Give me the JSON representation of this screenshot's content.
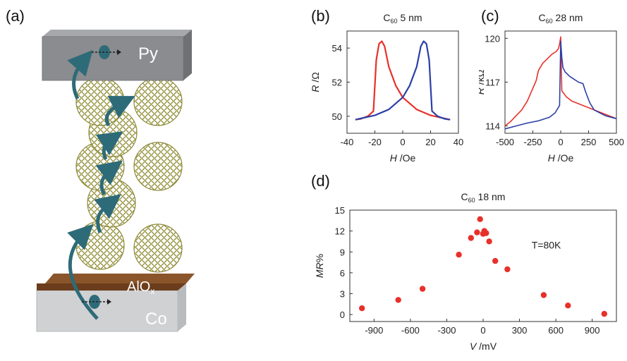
{
  "panel_labels": {
    "a": "(a)",
    "b": "(b)",
    "c": "(c)",
    "d": "(d)"
  },
  "device": {
    "top_label": "Py",
    "middle_label_main": "AlO",
    "middle_label_sub": "x",
    "bottom_label": "Co",
    "colors": {
      "py": "#8a8c8f",
      "alox": "#6b3d1c",
      "co": "#cfd0d2",
      "c60": "#b8b45c",
      "arrow": "#2e6b78"
    }
  },
  "chart_data": [
    {
      "id": "b",
      "type": "line",
      "title_prefix": "C",
      "title_sub": "60",
      "title_suffix": " 5 nm",
      "xlabel_italic": "H",
      "xlabel_unit": " /Oe",
      "ylabel_italic": "R",
      "ylabel_unit": " /Ω",
      "xlim": [
        -40,
        40
      ],
      "ylim": [
        49,
        55
      ],
      "xticks": [
        -40,
        -20,
        0,
        20,
        40
      ],
      "yticks": [
        50,
        52,
        54
      ],
      "series": [
        {
          "color": "#e8302a",
          "x": [
            34,
            20,
            10,
            0,
            -5,
            -10,
            -13,
            -15,
            -17,
            -19,
            -21,
            -25,
            -30,
            -34
          ],
          "y": [
            49.8,
            50.05,
            50.4,
            51.1,
            51.8,
            52.9,
            54.1,
            54.4,
            54.25,
            53.3,
            50.3,
            50.0,
            49.85,
            49.8
          ]
        },
        {
          "color": "#2b3fa6",
          "x": [
            -34,
            -20,
            -10,
            0,
            5,
            10,
            13,
            15,
            17,
            19,
            21,
            25,
            30,
            34
          ],
          "y": [
            49.8,
            50.05,
            50.4,
            51.1,
            51.8,
            52.9,
            54.1,
            54.4,
            54.25,
            53.3,
            50.3,
            50.0,
            49.85,
            49.8
          ]
        }
      ]
    },
    {
      "id": "c",
      "type": "line",
      "title_prefix": "C",
      "title_sub": "60",
      "title_suffix": " 28 nm",
      "xlabel_italic": "H",
      "xlabel_unit": " /Oe",
      "ylabel_italic": "R",
      "ylabel_unit": " /kΩ",
      "xlim": [
        -500,
        500
      ],
      "ylim": [
        113.5,
        120.5
      ],
      "xticks": [
        -500,
        -250,
        0,
        250,
        500
      ],
      "yticks": [
        114,
        117,
        120
      ],
      "series": [
        {
          "color": "#e8302a",
          "x": [
            500,
            400,
            300,
            200,
            100,
            50,
            10,
            0,
            -10,
            -20,
            -40,
            -80,
            -120,
            -160,
            -200,
            -220,
            -260,
            -300,
            -350,
            -400,
            -450,
            -500
          ],
          "y": [
            114.5,
            114.8,
            115.1,
            115.4,
            115.7,
            116.0,
            116.4,
            120.1,
            119.6,
            119.3,
            119.1,
            118.9,
            118.6,
            118.3,
            117.8,
            117.1,
            116.4,
            115.7,
            115.1,
            114.7,
            114.3,
            114.0
          ]
        },
        {
          "color": "#2b3fa6",
          "x": [
            -500,
            -400,
            -300,
            -200,
            -100,
            -50,
            -10,
            0,
            10,
            20,
            40,
            80,
            120,
            160,
            200,
            220,
            260,
            300,
            350,
            400,
            450,
            500
          ],
          "y": [
            113.8,
            114.0,
            114.2,
            114.35,
            114.6,
            114.9,
            115.4,
            119.8,
            118.7,
            118.0,
            117.7,
            117.4,
            117.2,
            117.0,
            116.9,
            116.4,
            115.6,
            115.1,
            114.9,
            114.7,
            114.6,
            114.5
          ]
        }
      ]
    },
    {
      "id": "d",
      "type": "scatter",
      "title_prefix": "C",
      "title_sub": "60",
      "title_suffix": " 18 nm",
      "xlabel_italic": "V",
      "xlabel_unit": " /mV",
      "ylabel_italic": "MR",
      "ylabel_unit": "%",
      "annotation": "T=80K",
      "xlim": [
        -1100,
        1100
      ],
      "ylim": [
        -1,
        15
      ],
      "xticks": [
        -900,
        -600,
        -300,
        0,
        300,
        600,
        900
      ],
      "yticks": [
        0,
        3,
        6,
        9,
        12,
        15
      ],
      "series": [
        {
          "color": "#e8302a",
          "x": [
            -1000,
            -700,
            -500,
            -200,
            -100,
            -50,
            -25,
            0,
            10,
            25,
            50,
            100,
            200,
            500,
            700,
            1000
          ],
          "y": [
            0.9,
            2.1,
            3.7,
            8.6,
            11.0,
            11.8,
            13.7,
            11.6,
            12.0,
            11.7,
            10.5,
            7.7,
            6.5,
            2.8,
            1.3,
            0.1
          ]
        }
      ]
    }
  ]
}
